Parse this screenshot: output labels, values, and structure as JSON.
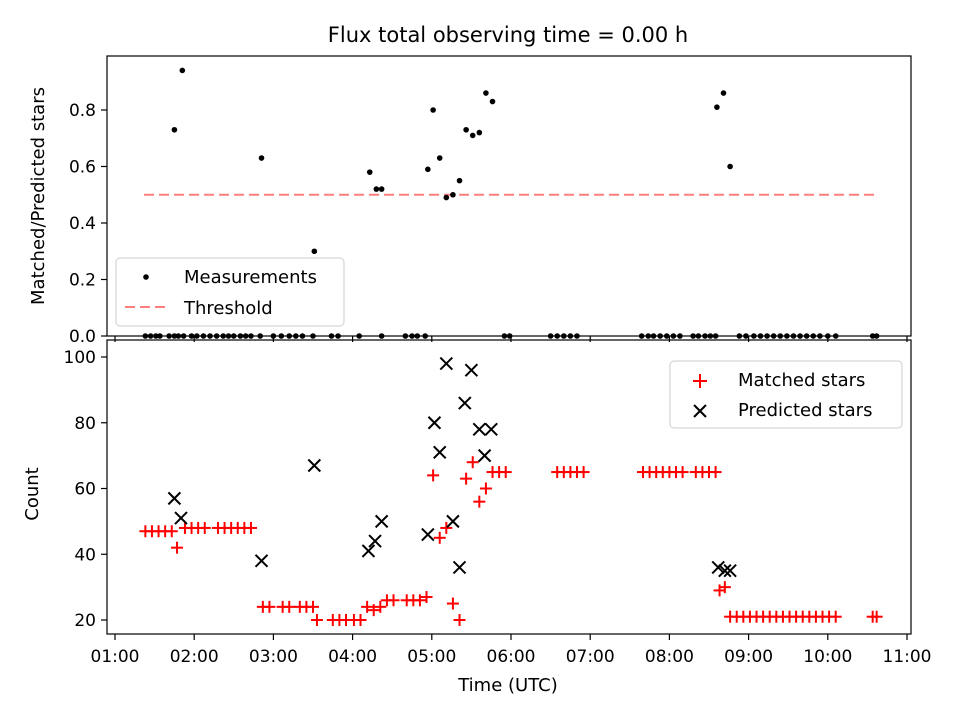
{
  "figure": {
    "title": "Flux total observing time = 0.00 h",
    "xlabel": "Time (UTC)"
  },
  "chart_data": [
    {
      "type": "scatter",
      "ylabel": "Matched/Predicted stars",
      "xlim": [
        "01:00",
        "11:00"
      ],
      "ylim": [
        0,
        1.0
      ],
      "yticks": [
        0.0,
        0.2,
        0.4,
        0.6,
        0.8
      ],
      "ytick_labels": [
        "0.0",
        "0.2",
        "0.4",
        "0.6",
        "0.8"
      ],
      "legend": {
        "placement": "lower-left",
        "entries": [
          "Measurements",
          "Threshold"
        ]
      },
      "threshold": {
        "name": "Threshold",
        "value": 0.5,
        "x_range": [
          "01:22",
          "10:37"
        ],
        "color": "#ff7f7f",
        "style": "dashed"
      },
      "series": [
        {
          "name": "Measurements",
          "color": "#000000",
          "marker": "dot",
          "points": [
            [
              "01:23",
              0
            ],
            [
              "01:27",
              0
            ],
            [
              "01:31",
              0
            ],
            [
              "01:34",
              0
            ],
            [
              "01:41",
              0
            ],
            [
              "01:45",
              0
            ],
            [
              "01:48",
              0
            ],
            [
              "01:52",
              0
            ],
            [
              "01:58",
              0
            ],
            [
              "02:02",
              0
            ],
            [
              "02:07",
              0
            ],
            [
              "02:12",
              0
            ],
            [
              "02:17",
              0
            ],
            [
              "02:22",
              0
            ],
            [
              "02:26",
              0
            ],
            [
              "02:30",
              0
            ],
            [
              "02:35",
              0
            ],
            [
              "02:39",
              0
            ],
            [
              "02:43",
              0
            ],
            [
              "02:50",
              0
            ],
            [
              "03:00",
              0
            ],
            [
              "03:06",
              0
            ],
            [
              "03:12",
              0
            ],
            [
              "03:17",
              0
            ],
            [
              "03:22",
              0
            ],
            [
              "03:30",
              0
            ],
            [
              "03:44",
              0
            ],
            [
              "03:49",
              0
            ],
            [
              "04:05",
              0
            ],
            [
              "04:22",
              0
            ],
            [
              "04:40",
              0
            ],
            [
              "04:45",
              0
            ],
            [
              "04:49",
              0
            ],
            [
              "04:55",
              0
            ],
            [
              "05:55",
              0
            ],
            [
              "05:59",
              0
            ],
            [
              "06:30",
              0
            ],
            [
              "06:35",
              0
            ],
            [
              "06:40",
              0
            ],
            [
              "06:45",
              0
            ],
            [
              "06:50",
              0
            ],
            [
              "07:39",
              0
            ],
            [
              "07:44",
              0
            ],
            [
              "07:48",
              0
            ],
            [
              "07:53",
              0
            ],
            [
              "07:58",
              0
            ],
            [
              "08:03",
              0
            ],
            [
              "08:08",
              0
            ],
            [
              "08:18",
              0
            ],
            [
              "08:22",
              0
            ],
            [
              "08:27",
              0
            ],
            [
              "08:31",
              0
            ],
            [
              "08:35",
              0
            ],
            [
              "08:53",
              0
            ],
            [
              "08:58",
              0
            ],
            [
              "09:04",
              0
            ],
            [
              "09:09",
              0
            ],
            [
              "09:14",
              0
            ],
            [
              "09:19",
              0
            ],
            [
              "09:24",
              0
            ],
            [
              "09:29",
              0
            ],
            [
              "09:34",
              0
            ],
            [
              "09:39",
              0
            ],
            [
              "09:44",
              0
            ],
            [
              "09:49",
              0
            ],
            [
              "09:54",
              0
            ],
            [
              "10:00",
              0
            ],
            [
              "10:06",
              0
            ],
            [
              "10:34",
              0
            ],
            [
              "10:37",
              0
            ],
            [
              "01:45",
              0.73
            ],
            [
              "01:51",
              0.94
            ],
            [
              "02:51",
              0.63
            ],
            [
              "03:31",
              0.3
            ],
            [
              "04:13",
              0.58
            ],
            [
              "04:18",
              0.52
            ],
            [
              "04:22",
              0.52
            ],
            [
              "04:57",
              0.59
            ],
            [
              "05:01",
              0.8
            ],
            [
              "05:06",
              0.63
            ],
            [
              "05:11",
              0.49
            ],
            [
              "05:16",
              0.5
            ],
            [
              "05:21",
              0.55
            ],
            [
              "05:26",
              0.73
            ],
            [
              "05:31",
              0.71
            ],
            [
              "05:36",
              0.72
            ],
            [
              "05:41",
              0.86
            ],
            [
              "05:46",
              0.83
            ],
            [
              "08:36",
              0.81
            ],
            [
              "08:41",
              0.86
            ],
            [
              "08:46",
              0.6
            ]
          ]
        }
      ]
    },
    {
      "type": "scatter",
      "ylabel": "Count",
      "xlim": [
        "01:00",
        "11:00"
      ],
      "ylim": [
        16,
        101
      ],
      "yticks": [
        20,
        40,
        60,
        80,
        100
      ],
      "ytick_labels": [
        "20",
        "40",
        "60",
        "80",
        "100"
      ],
      "xticks": [
        "01:00",
        "02:00",
        "03:00",
        "04:00",
        "05:00",
        "06:00",
        "07:00",
        "08:00",
        "09:00",
        "10:00",
        "11:00"
      ],
      "legend": {
        "placement": "top-right",
        "entries": [
          "Matched stars",
          "Predicted stars"
        ]
      },
      "series": [
        {
          "name": "Matched stars",
          "color": "#ff0000",
          "marker": "plus",
          "points": [
            [
              "01:23",
              47
            ],
            [
              "01:28",
              47
            ],
            [
              "01:33",
              47
            ],
            [
              "01:38",
              47
            ],
            [
              "01:43",
              47
            ],
            [
              "01:47",
              42
            ],
            [
              "01:53",
              48
            ],
            [
              "01:58",
              48
            ],
            [
              "02:03",
              48
            ],
            [
              "02:08",
              48
            ],
            [
              "02:18",
              48
            ],
            [
              "02:23",
              48
            ],
            [
              "02:28",
              48
            ],
            [
              "02:33",
              48
            ],
            [
              "02:38",
              48
            ],
            [
              "02:43",
              48
            ],
            [
              "02:52",
              24
            ],
            [
              "02:57",
              24
            ],
            [
              "03:07",
              24
            ],
            [
              "03:12",
              24
            ],
            [
              "03:20",
              24
            ],
            [
              "03:25",
              24
            ],
            [
              "03:30",
              24
            ],
            [
              "03:33",
              20
            ],
            [
              "03:45",
              20
            ],
            [
              "03:50",
              20
            ],
            [
              "03:55",
              20
            ],
            [
              "04:01",
              20
            ],
            [
              "04:06",
              20
            ],
            [
              "04:11",
              24
            ],
            [
              "04:16",
              23
            ],
            [
              "04:21",
              24
            ],
            [
              "04:26",
              26
            ],
            [
              "04:31",
              26
            ],
            [
              "04:41",
              26
            ],
            [
              "04:46",
              26
            ],
            [
              "04:51",
              26
            ],
            [
              "04:56",
              27
            ],
            [
              "05:01",
              64
            ],
            [
              "05:06",
              45
            ],
            [
              "05:11",
              48
            ],
            [
              "05:16",
              25
            ],
            [
              "05:21",
              20
            ],
            [
              "05:26",
              63
            ],
            [
              "05:31",
              68
            ],
            [
              "05:36",
              56
            ],
            [
              "05:41",
              60
            ],
            [
              "05:46",
              65
            ],
            [
              "05:51",
              65
            ],
            [
              "05:56",
              65
            ],
            [
              "06:35",
              65
            ],
            [
              "06:40",
              65
            ],
            [
              "06:45",
              65
            ],
            [
              "06:50",
              65
            ],
            [
              "06:55",
              65
            ],
            [
              "07:40",
              65
            ],
            [
              "07:45",
              65
            ],
            [
              "07:50",
              65
            ],
            [
              "07:55",
              65
            ],
            [
              "08:00",
              65
            ],
            [
              "08:05",
              65
            ],
            [
              "08:10",
              65
            ],
            [
              "08:20",
              65
            ],
            [
              "08:25",
              65
            ],
            [
              "08:30",
              65
            ],
            [
              "08:35",
              65
            ],
            [
              "08:38",
              29
            ],
            [
              "08:42",
              30
            ],
            [
              "08:46",
              21
            ],
            [
              "08:51",
              21
            ],
            [
              "08:56",
              21
            ],
            [
              "09:01",
              21
            ],
            [
              "09:06",
              21
            ],
            [
              "09:11",
              21
            ],
            [
              "09:16",
              21
            ],
            [
              "09:21",
              21
            ],
            [
              "09:26",
              21
            ],
            [
              "09:31",
              21
            ],
            [
              "09:36",
              21
            ],
            [
              "09:41",
              21
            ],
            [
              "09:46",
              21
            ],
            [
              "09:51",
              21
            ],
            [
              "09:56",
              21
            ],
            [
              "10:01",
              21
            ],
            [
              "10:06",
              21
            ],
            [
              "10:34",
              21
            ],
            [
              "10:37",
              21
            ]
          ]
        },
        {
          "name": "Predicted stars",
          "color": "#000000",
          "marker": "x",
          "points": [
            [
              "01:45",
              57
            ],
            [
              "01:50",
              51
            ],
            [
              "02:51",
              38
            ],
            [
              "03:31",
              67
            ],
            [
              "04:12",
              41
            ],
            [
              "04:17",
              44
            ],
            [
              "04:22",
              50
            ],
            [
              "04:57",
              46
            ],
            [
              "05:02",
              80
            ],
            [
              "05:06",
              71
            ],
            [
              "05:11",
              98
            ],
            [
              "05:16",
              50
            ],
            [
              "05:21",
              36
            ],
            [
              "05:25",
              86
            ],
            [
              "05:30",
              96
            ],
            [
              "05:36",
              78
            ],
            [
              "05:40",
              70
            ],
            [
              "05:45",
              78
            ],
            [
              "08:37",
              36
            ],
            [
              "08:42",
              35
            ],
            [
              "08:46",
              35
            ]
          ]
        }
      ]
    }
  ]
}
